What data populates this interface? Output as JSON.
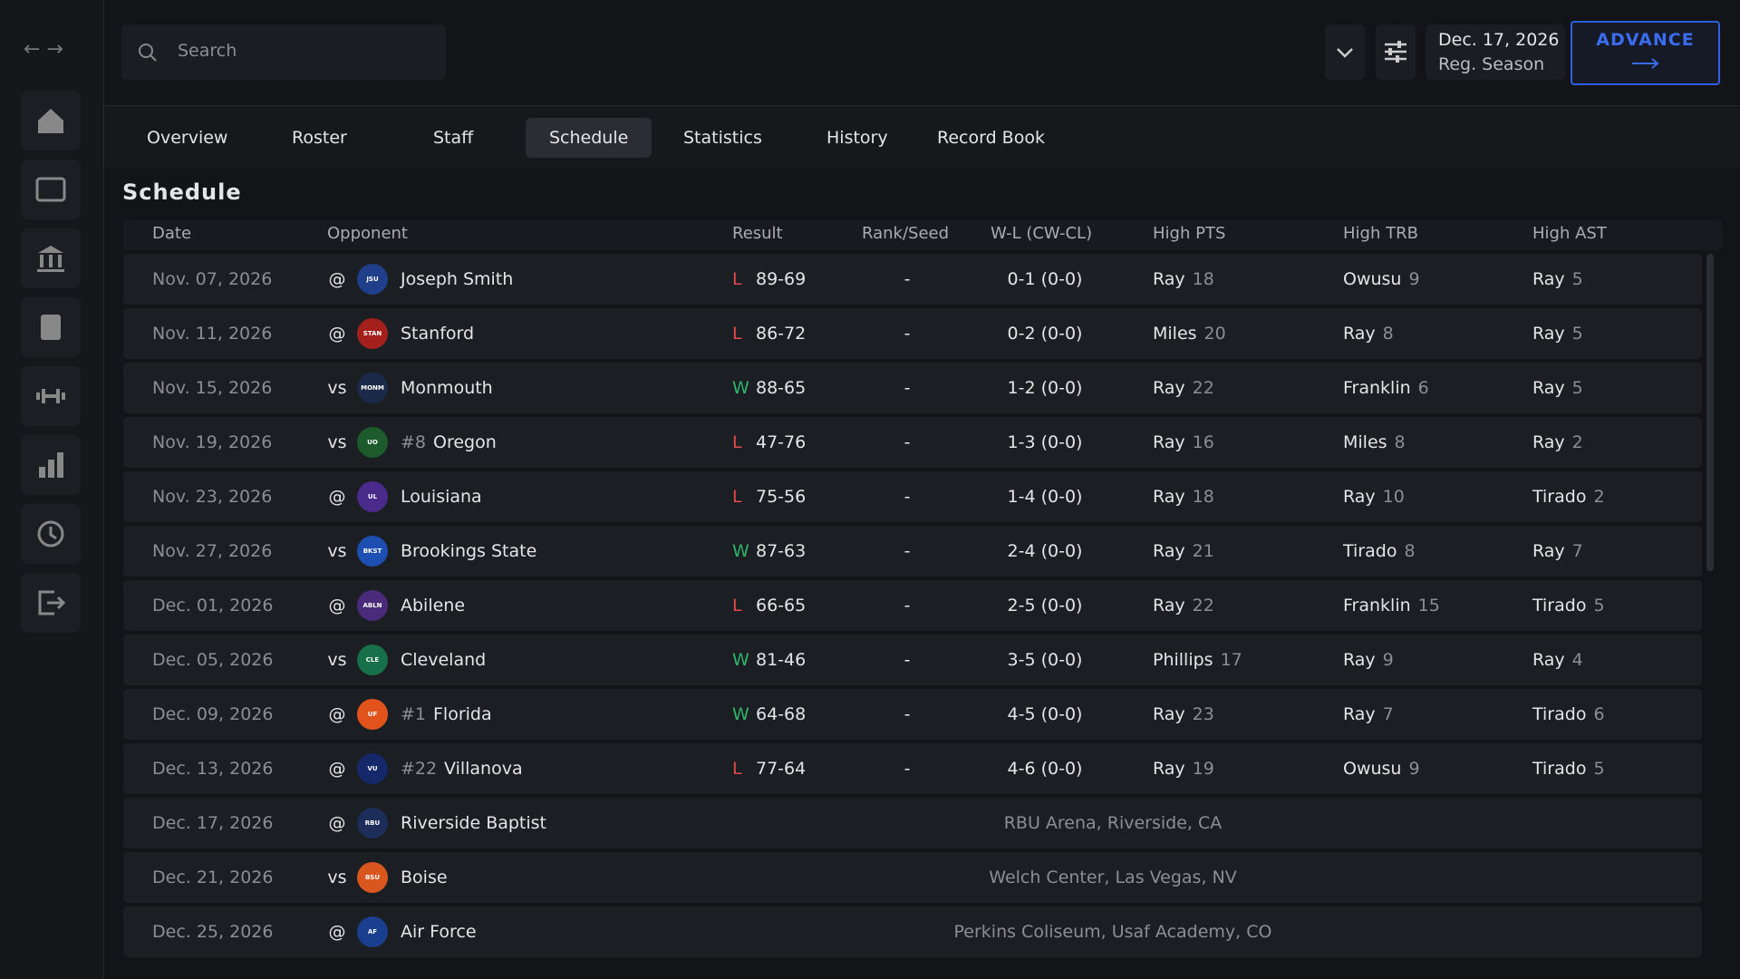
{
  "search": {
    "placeholder": "Search"
  },
  "header": {
    "date": "Dec. 17, 2026",
    "phase": "Reg. Season",
    "advance": "ADVANCE"
  },
  "tabs": [
    "Overview",
    "Roster",
    "Staff",
    "Schedule",
    "Statistics",
    "History",
    "Record Book"
  ],
  "active_tab": "Schedule",
  "section_title": "Schedule",
  "table": {
    "columns": [
      "Date",
      "Opponent",
      "Result",
      "Rank/Seed",
      "W-L (CW-CL)",
      "High PTS",
      "High TRB",
      "High AST"
    ],
    "rows": [
      {
        "date": "Nov. 07, 2026",
        "loc": "@",
        "logo": "JSU",
        "logo_color": "#1f3f8a",
        "opponent": "Joseph Smith",
        "outcome": "L",
        "score": "89-69",
        "rank_seed": "-",
        "record": "0-1 (0-0)",
        "high_pts": {
          "name": "Ray",
          "value": 18
        },
        "high_trb": {
          "name": "Owusu",
          "value": 9
        },
        "high_ast": {
          "name": "Ray",
          "value": 5
        }
      },
      {
        "date": "Nov. 11, 2026",
        "loc": "@",
        "logo": "STAN",
        "logo_color": "#a3201d",
        "opponent": "Stanford",
        "outcome": "L",
        "score": "86-72",
        "rank_seed": "-",
        "record": "0-2 (0-0)",
        "high_pts": {
          "name": "Miles",
          "value": 20
        },
        "high_trb": {
          "name": "Ray",
          "value": 8
        },
        "high_ast": {
          "name": "Ray",
          "value": 5
        }
      },
      {
        "date": "Nov. 15, 2026",
        "loc": "vs",
        "logo": "MONM",
        "logo_color": "#1c2a4a",
        "opponent": "Monmouth",
        "outcome": "W",
        "score": "88-65",
        "rank_seed": "-",
        "record": "1-2 (0-0)",
        "high_pts": {
          "name": "Ray",
          "value": 22
        },
        "high_trb": {
          "name": "Franklin",
          "value": 6
        },
        "high_ast": {
          "name": "Ray",
          "value": 5
        }
      },
      {
        "date": "Nov. 19, 2026",
        "loc": "vs",
        "logo": "UO",
        "logo_color": "#1d5a2c",
        "rank": "#8",
        "opponent": "Oregon",
        "outcome": "L",
        "score": "47-76",
        "rank_seed": "-",
        "record": "1-3 (0-0)",
        "high_pts": {
          "name": "Ray",
          "value": 16
        },
        "high_trb": {
          "name": "Miles",
          "value": 8
        },
        "high_ast": {
          "name": "Ray",
          "value": 2
        }
      },
      {
        "date": "Nov. 23, 2026",
        "loc": "@",
        "logo": "UL",
        "logo_color": "#4a2a8a",
        "opponent": "Louisiana",
        "outcome": "L",
        "score": "75-56",
        "rank_seed": "-",
        "record": "1-4 (0-0)",
        "high_pts": {
          "name": "Ray",
          "value": 18
        },
        "high_trb": {
          "name": "Ray",
          "value": 10
        },
        "high_ast": {
          "name": "Tirado",
          "value": 2
        }
      },
      {
        "date": "Nov. 27, 2026",
        "loc": "vs",
        "logo": "BKST",
        "logo_color": "#1d4fb3",
        "opponent": "Brookings State",
        "outcome": "W",
        "score": "87-63",
        "rank_seed": "-",
        "record": "2-4 (0-0)",
        "high_pts": {
          "name": "Ray",
          "value": 21
        },
        "high_trb": {
          "name": "Tirado",
          "value": 8
        },
        "high_ast": {
          "name": "Ray",
          "value": 7
        }
      },
      {
        "date": "Dec. 01, 2026",
        "loc": "@",
        "logo": "ABLN",
        "logo_color": "#4a2a7a",
        "opponent": "Abilene",
        "outcome": "L",
        "score": "66-65",
        "rank_seed": "-",
        "record": "2-5 (0-0)",
        "high_pts": {
          "name": "Ray",
          "value": 22
        },
        "high_trb": {
          "name": "Franklin",
          "value": 15
        },
        "high_ast": {
          "name": "Tirado",
          "value": 5
        }
      },
      {
        "date": "Dec. 05, 2026",
        "loc": "vs",
        "logo": "CLE",
        "logo_color": "#17704a",
        "opponent": "Cleveland",
        "outcome": "W",
        "score": "81-46",
        "rank_seed": "-",
        "record": "3-5 (0-0)",
        "high_pts": {
          "name": "Phillips",
          "value": 17
        },
        "high_trb": {
          "name": "Ray",
          "value": 9
        },
        "high_ast": {
          "name": "Ray",
          "value": 4
        }
      },
      {
        "date": "Dec. 09, 2026",
        "loc": "@",
        "logo": "UF",
        "logo_color": "#e2531c",
        "rank": "#1",
        "opponent": "Florida",
        "outcome": "W",
        "score": "64-68",
        "rank_seed": "-",
        "record": "4-5 (0-0)",
        "high_pts": {
          "name": "Ray",
          "value": 23
        },
        "high_trb": {
          "name": "Ray",
          "value": 7
        },
        "high_ast": {
          "name": "Tirado",
          "value": 6
        }
      },
      {
        "date": "Dec. 13, 2026",
        "loc": "@",
        "logo": "VU",
        "logo_color": "#14286a",
        "rank": "#22",
        "opponent": "Villanova",
        "outcome": "L",
        "score": "77-64",
        "rank_seed": "-",
        "record": "4-6 (0-0)",
        "high_pts": {
          "name": "Ray",
          "value": 19
        },
        "high_trb": {
          "name": "Owusu",
          "value": 9
        },
        "high_ast": {
          "name": "Tirado",
          "value": 5
        }
      },
      {
        "date": "Dec. 17, 2026",
        "loc": "@",
        "logo": "RBU",
        "logo_color": "#1c2d5a",
        "opponent": "Riverside Baptist",
        "venue": "RBU Arena, Riverside, CA"
      },
      {
        "date": "Dec. 21, 2026",
        "loc": "vs",
        "logo": "BSU",
        "logo_color": "#d9561f",
        "opponent": "Boise",
        "venue": "Welch Center, Las Vegas, NV"
      },
      {
        "date": "Dec. 25, 2026",
        "loc": "@",
        "logo": "AF",
        "logo_color": "#1b3f8f",
        "opponent": "Air Force",
        "venue": "Perkins Coliseum, Usaf Academy, CO"
      }
    ]
  }
}
